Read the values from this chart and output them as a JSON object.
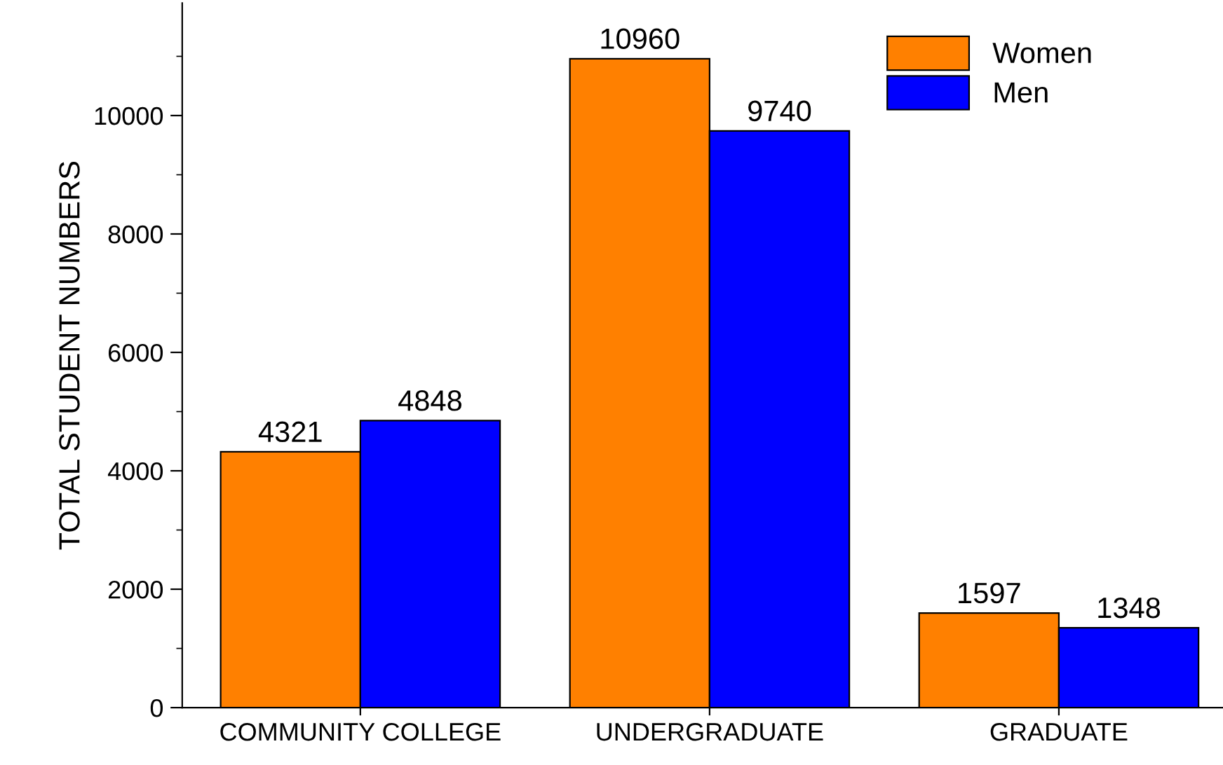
{
  "chart_data": {
    "type": "bar",
    "ylabel": "TOTAL STUDENT NUMBERS",
    "categories": [
      "COMMUNITY COLLEGE",
      "UNDERGRADUATE",
      "GRADUATE"
    ],
    "series": [
      {
        "name": "Women",
        "color": "#ff8000",
        "values": [
          4321,
          10960,
          1597
        ]
      },
      {
        "name": "Men",
        "color": "#0000ff",
        "values": [
          4848,
          9740,
          1348
        ]
      }
    ],
    "ylim": [
      0,
      11900
    ],
    "yticks": [
      0,
      2000,
      4000,
      6000,
      8000,
      10000
    ],
    "data_labels": true,
    "legend": "top right",
    "grid": false
  }
}
